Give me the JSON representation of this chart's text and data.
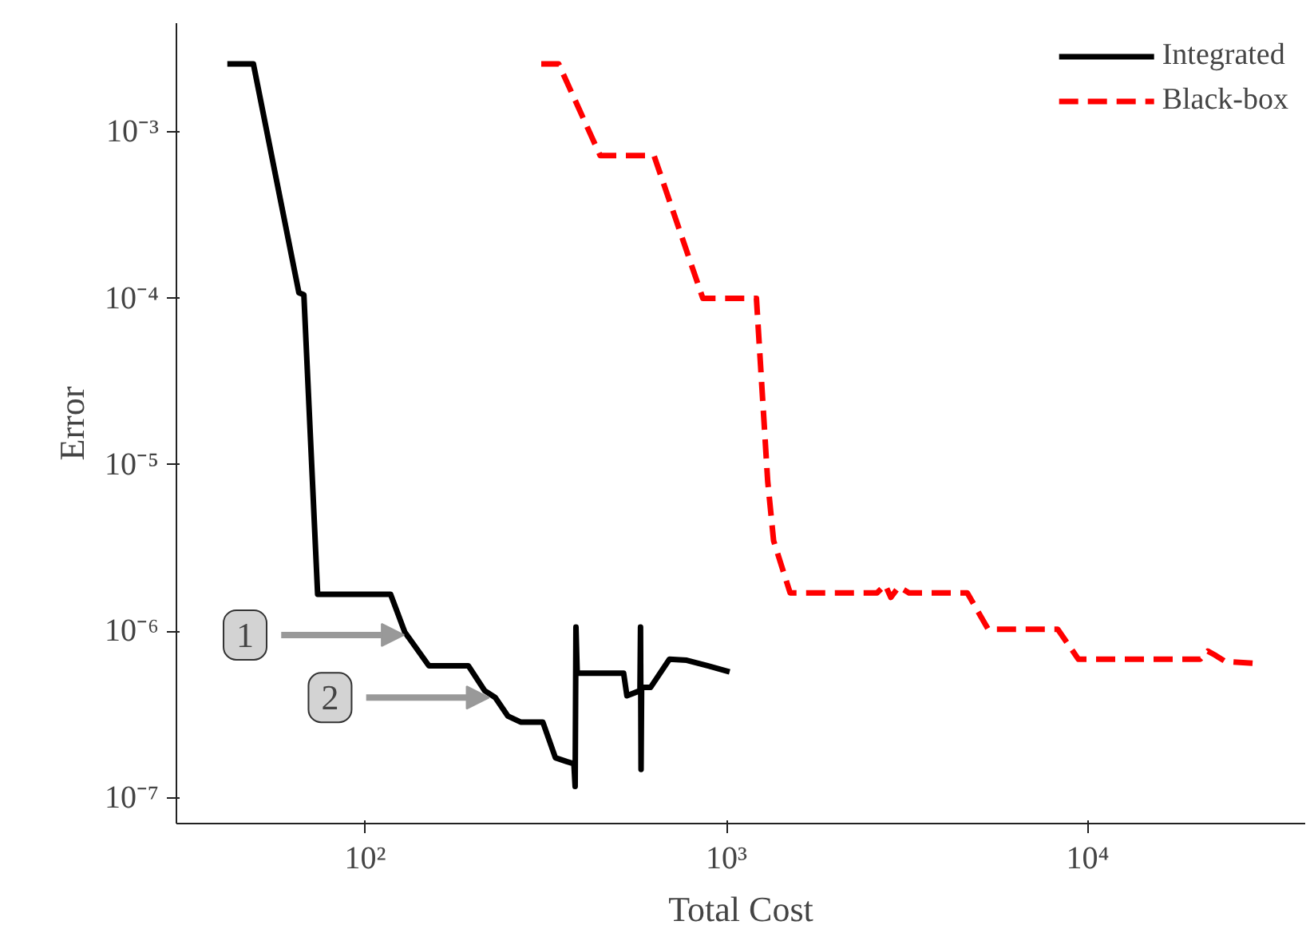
{
  "chart_data": {
    "type": "line",
    "xlabel": "Total Cost",
    "ylabel": "Error",
    "log": "xy",
    "grid": false,
    "legend": "top right",
    "xlim": [
      30,
      40000
    ],
    "ylim": [
      7e-08,
      0.0045
    ],
    "xticks": [
      {
        "value": 100,
        "label": "10²"
      },
      {
        "value": 1000,
        "label": "10³"
      },
      {
        "value": 10000,
        "label": "10⁴"
      }
    ],
    "yticks": [
      {
        "value": 0.001,
        "label": "10⁻³"
      },
      {
        "value": 0.0001,
        "label": "10⁻⁴"
      },
      {
        "value": 1e-05,
        "label": "10⁻⁵"
      },
      {
        "value": 1e-06,
        "label": "10⁻⁶"
      },
      {
        "value": 1e-07,
        "label": "10⁻⁷"
      }
    ],
    "series": [
      {
        "name": "Integrated",
        "color": "#000000",
        "line_style": "solid",
        "x": [
          41.5,
          49,
          65.5,
          67.6,
          73.8,
          117.5,
          128.6,
          150,
          193,
          214,
          229,
          248,
          269,
          310,
          336,
          361,
          378,
          381,
          383,
          386,
          398,
          519,
          530,
          576,
          578,
          580,
          582,
          616,
          695,
          776,
          890,
          1020
        ],
        "values": [
          0.00256,
          0.00256,
          0.000108,
          0.000105,
          1.67e-06,
          1.67e-06,
          9.9e-07,
          6.2e-07,
          6.2e-07,
          4.4e-07,
          4e-07,
          3.1e-07,
          2.85e-07,
          2.85e-07,
          1.74e-07,
          1.65e-07,
          1.6e-07,
          1.17e-07,
          1.06e-06,
          5.6e-07,
          5.6e-07,
          5.6e-07,
          4.1e-07,
          4.4e-07,
          1.06e-06,
          1.48e-07,
          4.6e-07,
          4.6e-07,
          6.8e-07,
          6.7e-07,
          6.2e-07,
          5.7e-07
        ]
      },
      {
        "name": "Black-box",
        "color": "#ff0000",
        "line_style": "dashed",
        "x": [
          307,
          343,
          447,
          630,
          860,
          1210,
          1300,
          1350,
          1500,
          2610,
          2750,
          2850,
          3000,
          3200,
          4640,
          5300,
          8260,
          9420,
          20500,
          21500,
          22500,
          24000,
          29500
        ],
        "values": [
          0.00256,
          0.00256,
          0.00072,
          0.00072,
          0.0001,
          0.0001,
          8e-06,
          3.5e-06,
          1.7e-06,
          1.7e-06,
          1.9e-06,
          1.6e-06,
          1.85e-06,
          1.7e-06,
          1.7e-06,
          1.03e-06,
          1.03e-06,
          6.8e-07,
          6.8e-07,
          7.6e-07,
          7.2e-07,
          6.6e-07,
          6.4e-07
        ]
      }
    ],
    "annotations": [
      {
        "text": "1",
        "x": 128,
        "y": 9.5e-07
      },
      {
        "text": "2",
        "x": 220,
        "y": 4e-07
      }
    ]
  }
}
